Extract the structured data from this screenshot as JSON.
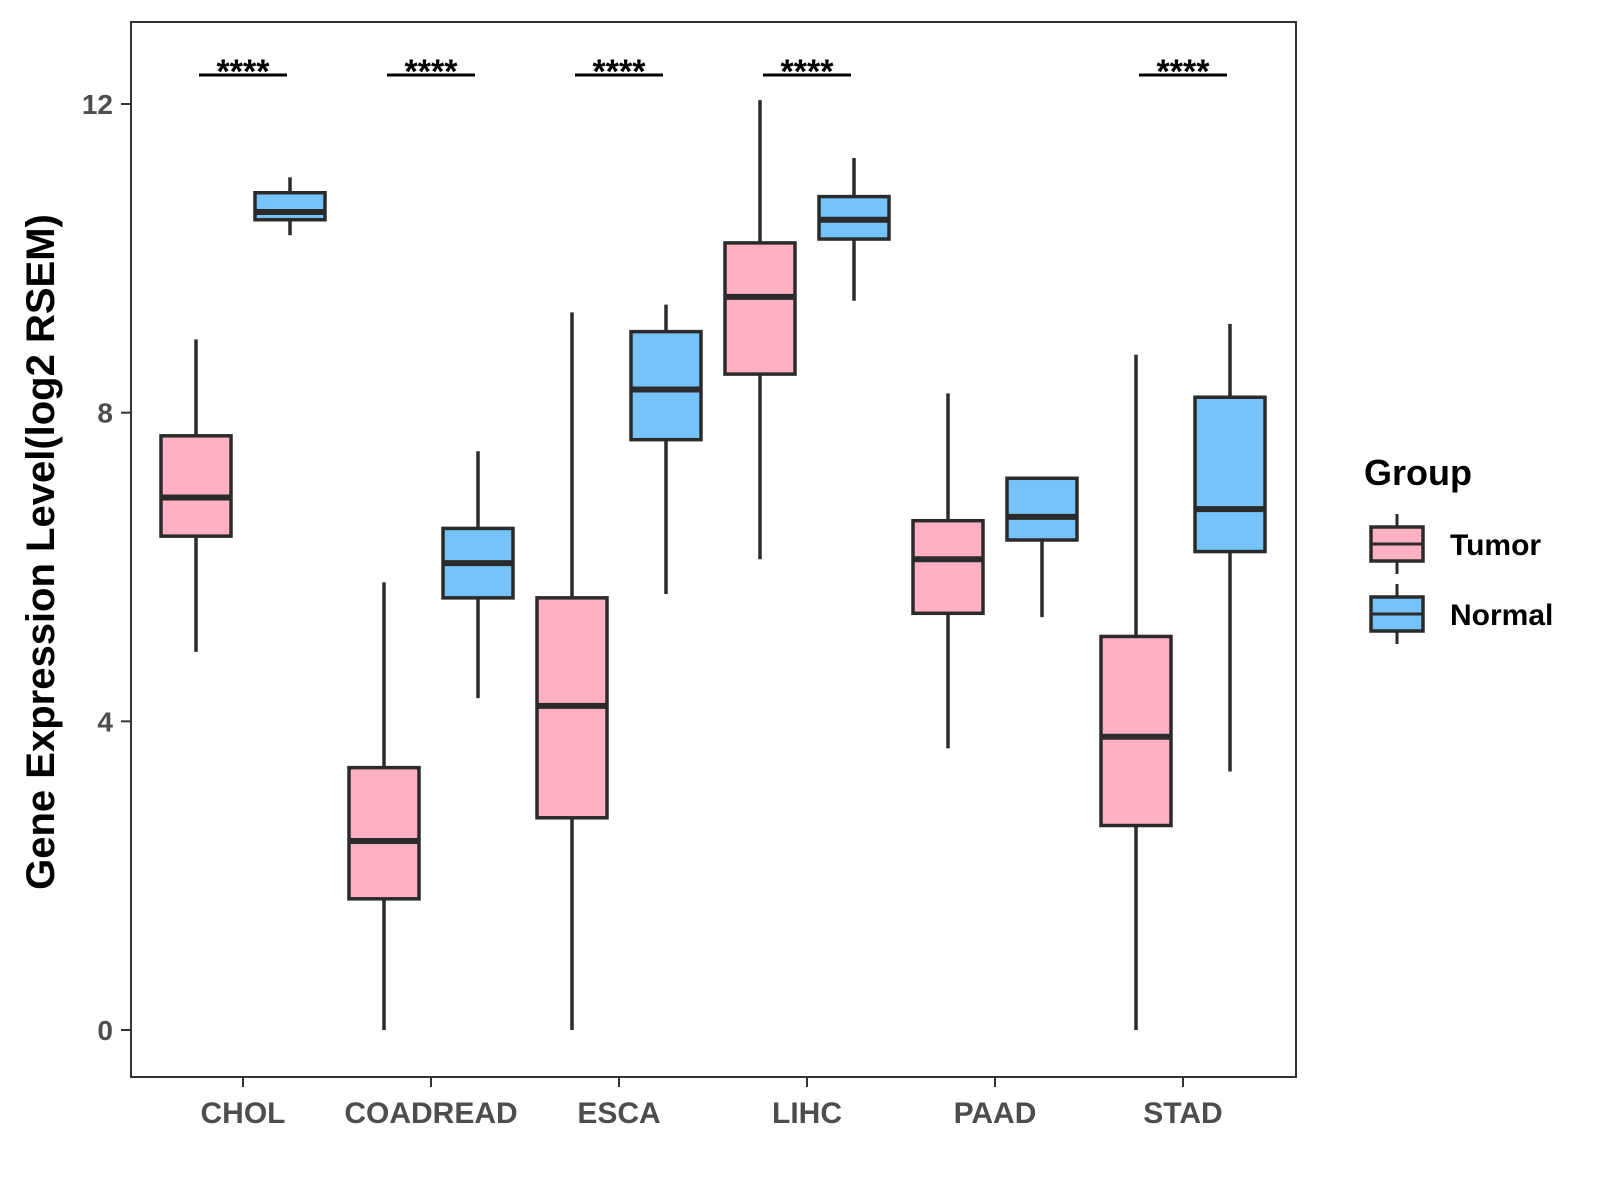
{
  "chart_data": {
    "type": "boxplot",
    "title": "",
    "xlabel": "",
    "ylabel": "Gene Expression Level(log2 RSEM)",
    "ylim": [
      -0.6,
      13.1
    ],
    "yticks": [
      0,
      4,
      8,
      12
    ],
    "ytick_labels": [
      "0",
      "4",
      "8",
      "12"
    ],
    "grid": false,
    "categories": [
      "CHOL",
      "COADREAD",
      "ESCA",
      "LIHC",
      "PAAD",
      "STAD"
    ],
    "series": [
      {
        "name": "Tumor",
        "color": "#FFB0C3",
        "boxes": [
          {
            "min": 4.9,
            "q1": 6.4,
            "median": 6.9,
            "q3": 7.7,
            "max": 8.95
          },
          {
            "min": 0.0,
            "q1": 1.7,
            "median": 2.45,
            "q3": 3.4,
            "max": 5.8
          },
          {
            "min": 0.0,
            "q1": 2.75,
            "median": 4.2,
            "q3": 5.6,
            "max": 9.3
          },
          {
            "min": 6.1,
            "q1": 8.5,
            "median": 9.5,
            "q3": 10.2,
            "max": 12.05
          },
          {
            "min": 3.65,
            "q1": 5.4,
            "median": 6.1,
            "q3": 6.6,
            "max": 8.25
          },
          {
            "min": 0.0,
            "q1": 2.65,
            "median": 3.8,
            "q3": 5.1,
            "max": 8.75
          }
        ]
      },
      {
        "name": "Normal",
        "color": "#76C3FA",
        "boxes": [
          {
            "min": 10.3,
            "q1": 10.5,
            "median": 10.6,
            "q3": 10.85,
            "max": 11.05
          },
          {
            "min": 4.3,
            "q1": 5.6,
            "median": 6.05,
            "q3": 6.5,
            "max": 7.5
          },
          {
            "min": 5.65,
            "q1": 7.65,
            "median": 8.3,
            "q3": 9.05,
            "max": 9.4
          },
          {
            "min": 9.45,
            "q1": 10.25,
            "median": 10.5,
            "q3": 10.8,
            "max": 11.3
          },
          {
            "min": 5.35,
            "q1": 6.35,
            "median": 6.65,
            "q3": 7.15,
            "max": 7.15
          },
          {
            "min": 3.35,
            "q1": 6.2,
            "median": 6.75,
            "q3": 8.2,
            "max": 9.15
          }
        ]
      }
    ],
    "significance": [
      {
        "category": "CHOL",
        "label": "****"
      },
      {
        "category": "COADREAD",
        "label": "****"
      },
      {
        "category": "ESCA",
        "label": "****"
      },
      {
        "category": "LIHC",
        "label": "****"
      },
      {
        "category": "STAD",
        "label": "****"
      }
    ],
    "legend": {
      "title": "Group",
      "entries": [
        "Tumor",
        "Normal"
      ],
      "position": "right"
    }
  }
}
